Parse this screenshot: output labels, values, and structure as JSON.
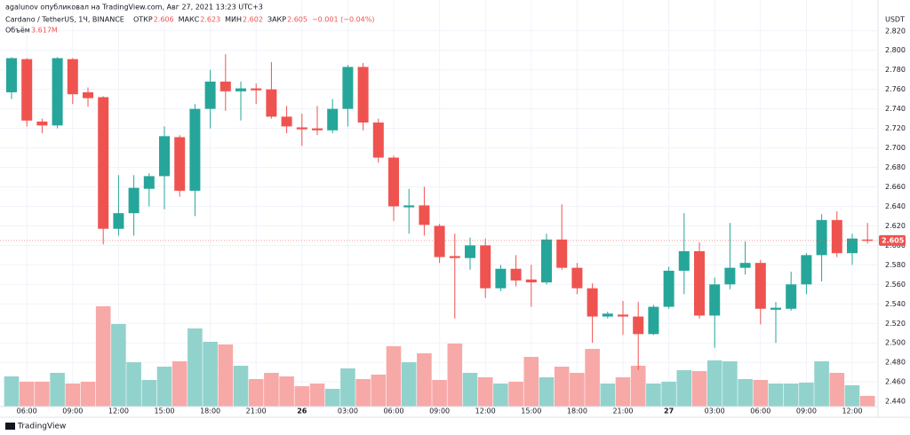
{
  "header": {
    "author": "agalunov опубликовал на TradingView.com, Авг 27, 2021 13:23 UTC+3",
    "symbol": "Cardano / TetherUS, 1Ч, BINANCE",
    "ohlc": [
      {
        "label": "ОТКР",
        "value": "2.606"
      },
      {
        "label": "МАКС",
        "value": "2.623"
      },
      {
        "label": "МИН",
        "value": "2.602"
      },
      {
        "label": "ЗАКР",
        "value": "2.605"
      }
    ],
    "change": "−0.001 (−0.04%)",
    "volume_name": "Объём",
    "volume_last": "3.617M"
  },
  "footer": {
    "logo": "TradingView"
  },
  "chart_data": {
    "type": "candlestick",
    "currency": "USDT",
    "up_color": "#26a69a",
    "down_color": "#ef5350",
    "volume_up_color": "#92d2cc",
    "volume_down_color": "#f7a9a7",
    "grid": true,
    "categories": [
      null,
      "06:00",
      null,
      null,
      "09:00",
      null,
      null,
      "12:00",
      null,
      null,
      "15:00",
      null,
      null,
      "18:00",
      null,
      null,
      "21:00",
      null,
      null,
      "26",
      null,
      null,
      "03:00",
      null,
      null,
      "06:00",
      null,
      null,
      "09:00",
      null,
      null,
      "12:00",
      null,
      null,
      "15:00",
      null,
      null,
      "18:00",
      null,
      null,
      "21:00",
      null,
      null,
      "27",
      null,
      null,
      "03:00",
      null,
      null,
      "06:00",
      null,
      null,
      "09:00",
      null,
      null,
      "12:00",
      null
    ],
    "open": [
      2.757,
      2.791,
      2.727,
      2.723,
      2.791,
      2.757,
      2.752,
      2.617,
      2.633,
      2.658,
      2.671,
      2.711,
      2.656,
      2.74,
      2.768,
      2.758,
      2.761,
      2.76,
      2.732,
      2.721,
      2.72,
      2.718,
      2.74,
      2.783,
      2.726,
      2.69,
      2.639,
      2.641,
      2.62,
      2.589,
      2.587,
      2.6,
      2.556,
      2.576,
      2.565,
      2.562,
      2.606,
      2.577,
      2.556,
      2.527,
      2.529,
      2.527,
      2.509,
      2.537,
      2.574,
      2.594,
      2.528,
      2.56,
      2.577,
      2.582,
      2.534,
      2.535,
      2.56,
      2.59,
      2.626,
      2.592,
      2.606
    ],
    "high": [
      2.793,
      2.792,
      2.73,
      2.793,
      2.792,
      2.762,
      2.753,
      2.672,
      2.672,
      2.674,
      2.722,
      2.713,
      2.745,
      2.78,
      2.796,
      2.768,
      2.766,
      2.788,
      2.743,
      2.735,
      2.743,
      2.75,
      2.785,
      2.787,
      2.73,
      2.692,
      2.658,
      2.66,
      2.622,
      2.612,
      2.608,
      2.607,
      2.58,
      2.59,
      2.58,
      2.612,
      2.642,
      2.582,
      2.561,
      2.532,
      2.543,
      2.542,
      2.539,
      2.578,
      2.633,
      2.603,
      2.567,
      2.623,
      2.604,
      2.585,
      2.542,
      2.573,
      2.592,
      2.632,
      2.635,
      2.612,
      2.623
    ],
    "low": [
      2.75,
      2.722,
      2.715,
      2.72,
      2.745,
      2.742,
      2.601,
      2.61,
      2.61,
      2.64,
      2.637,
      2.65,
      2.63,
      2.72,
      2.738,
      2.728,
      2.745,
      2.73,
      2.715,
      2.702,
      2.713,
      2.715,
      2.722,
      2.718,
      2.685,
      2.625,
      2.612,
      2.61,
      2.582,
      2.525,
      2.575,
      2.546,
      2.553,
      2.558,
      2.537,
      2.56,
      2.575,
      2.55,
      2.5,
      2.525,
      2.508,
      2.472,
      2.508,
      2.535,
      2.55,
      2.525,
      2.495,
      2.555,
      2.57,
      2.519,
      2.5,
      2.533,
      2.55,
      2.563,
      2.588,
      2.58,
      2.602
    ],
    "close": [
      2.792,
      2.728,
      2.723,
      2.792,
      2.755,
      2.751,
      2.617,
      2.633,
      2.659,
      2.671,
      2.712,
      2.656,
      2.74,
      2.768,
      2.758,
      2.761,
      2.759,
      2.732,
      2.722,
      2.719,
      2.718,
      2.74,
      2.783,
      2.726,
      2.69,
      2.64,
      2.641,
      2.621,
      2.588,
      2.587,
      2.6,
      2.556,
      2.576,
      2.564,
      2.562,
      2.606,
      2.577,
      2.556,
      2.527,
      2.53,
      2.527,
      2.509,
      2.537,
      2.574,
      2.594,
      2.528,
      2.56,
      2.577,
      2.582,
      2.535,
      2.536,
      2.56,
      2.59,
      2.626,
      2.592,
      2.607,
      2.605
    ],
    "volume": [
      10.2,
      8.4,
      8.4,
      11.4,
      7.8,
      8.4,
      33.9,
      27.9,
      15,
      9,
      13.5,
      15.3,
      26.4,
      21.9,
      21,
      13.8,
      9.3,
      11.4,
      10.2,
      6.9,
      7.8,
      6,
      12.9,
      9.3,
      10.8,
      20.4,
      15,
      18,
      9,
      21.3,
      11.4,
      9.9,
      7.8,
      8.4,
      16.8,
      9.9,
      13.5,
      11.4,
      19.5,
      7.8,
      9.9,
      13.8,
      7.8,
      8.4,
      12.3,
      12,
      15.6,
      15.3,
      9.3,
      9,
      7.8,
      7.8,
      8.1,
      15.3,
      11.4,
      7.2,
      3.617
    ],
    "ylim": [
      2.431,
      2.838
    ],
    "yticks": [
      {
        "value": 2.44,
        "label": "2.440"
      },
      {
        "value": 2.46,
        "label": "2.460"
      },
      {
        "value": 2.48,
        "label": "2.480"
      },
      {
        "value": 2.5,
        "label": "2.500"
      },
      {
        "value": 2.52,
        "label": "2.520"
      },
      {
        "value": 2.54,
        "label": "2.540"
      },
      {
        "value": 2.56,
        "label": "2.560"
      },
      {
        "value": 2.58,
        "label": "2.580"
      },
      {
        "value": 2.6,
        "label": "2.600"
      },
      {
        "value": 2.62,
        "label": "2.620"
      },
      {
        "value": 2.64,
        "label": "2.640"
      },
      {
        "value": 2.66,
        "label": "2.660"
      },
      {
        "value": 2.68,
        "label": "2.680"
      },
      {
        "value": 2.7,
        "label": "2.700"
      },
      {
        "value": 2.72,
        "label": "2.720"
      },
      {
        "value": 2.74,
        "label": "2.740"
      },
      {
        "value": 2.76,
        "label": "2.760"
      },
      {
        "value": 2.78,
        "label": "2.780"
      },
      {
        "value": 2.8,
        "label": "2.800"
      },
      {
        "value": 2.82,
        "label": "2.820"
      }
    ]
  }
}
